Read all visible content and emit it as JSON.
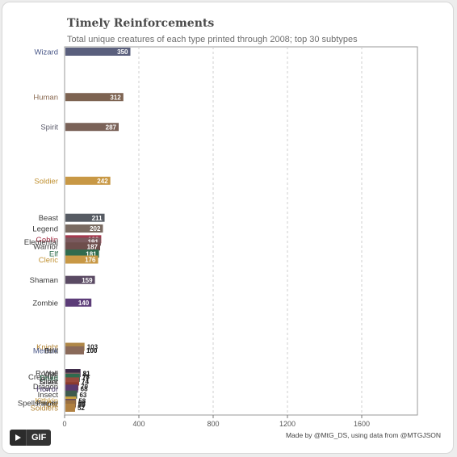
{
  "header": {
    "title": "Timely Reinforcements",
    "subtitle": "Total unique creatures of each type printed through 2008; top 30 subtypes"
  },
  "footer": {
    "credit": "Made by @MtG_DS, using data from @MTGJSON",
    "gif_label": "GIF"
  },
  "chart_data": {
    "type": "bar",
    "orientation": "horizontal",
    "title": "Timely Reinforcements",
    "subtitle": "Total unique creatures of each type printed through 2008; top 30 subtypes",
    "xlabel": "",
    "ylabel": "",
    "xlim": [
      0,
      1900
    ],
    "xticks": [
      0,
      400,
      800,
      1200,
      1600
    ],
    "grid": "vertical dashed",
    "categories": [
      "Wizard",
      "Human",
      "Spirit",
      "Soldier",
      "Beast",
      "Legend",
      "Goblin",
      "Elemental",
      "Warrior",
      "Elf",
      "Cleric",
      "Shaman",
      "Zombie",
      "Knight",
      "Merfolk",
      "Bird",
      "Rogue",
      "Wall",
      "Creature",
      "Druid",
      "Sliver",
      "Giant",
      "Dragon",
      "Horror",
      "Insect",
      "Kithkin",
      "Faerie",
      "Spellshaper",
      "Cat",
      "Soldiers"
    ],
    "values": [
      350,
      312,
      287,
      242,
      211,
      202,
      193,
      191,
      187,
      181,
      176,
      159,
      140,
      103,
      100,
      100,
      81,
      81,
      78,
      77,
      74,
      74,
      70,
      68,
      63,
      58,
      56,
      56,
      55,
      52
    ],
    "value_labels": [
      "350",
      "312",
      "287",
      "242",
      "211",
      "202",
      "193",
      "191",
      "187",
      "181",
      "176",
      "159",
      "140",
      "103",
      "100",
      "100",
      "81",
      "81",
      "78",
      "77",
      "74",
      "74",
      "70",
      "68",
      "63",
      "58",
      "56",
      "56",
      "55",
      "52"
    ],
    "colors": [
      "#5a5f7d",
      "#7d6351",
      "#7a6258",
      "#c89845",
      "#565b63",
      "#7a6b62",
      "#a43a4f",
      "#7a5a5e",
      "#6e4e4c",
      "#2f6b4e",
      "#c89845",
      "#5a4a63",
      "#5c3c78",
      "#b08848",
      "#5a6a9a",
      "#8a6a5a",
      "#4a2d5a",
      "#3e2a48",
      "#7a6262",
      "#2f6b4e",
      "#7a6b62",
      "#9a4a3c",
      "#8a3a2e",
      "#5a3a6e",
      "#3e5a4e",
      "#c8a040",
      "#4a6aa0",
      "#6a4a5a",
      "#9a7040",
      "#b08040"
    ],
    "label_colors": [
      "#4a5888",
      "#8a6a52",
      "#5a5a6a",
      "#c09030",
      "#3a3a3a",
      "#3a3a3a",
      "#a02a40",
      "#3a3a3a",
      "#3a3a3a",
      "#2a6a4a",
      "#c09030",
      "#3a3a3a",
      "#3a3a3a",
      "#b08030",
      "#4a5888",
      "#3a3a3a",
      "#3a3a3a",
      "#3a3a3a",
      "#3a3a3a",
      "#2a6a4a",
      "#3a3a3a",
      "#3a3a3a",
      "#3a3a3a",
      "#4a3a6a",
      "#3a3a3a",
      "#c09030",
      "#3a3a3a",
      "#3a3a3a",
      "#b08030",
      "#b08030"
    ],
    "legend": "none"
  }
}
